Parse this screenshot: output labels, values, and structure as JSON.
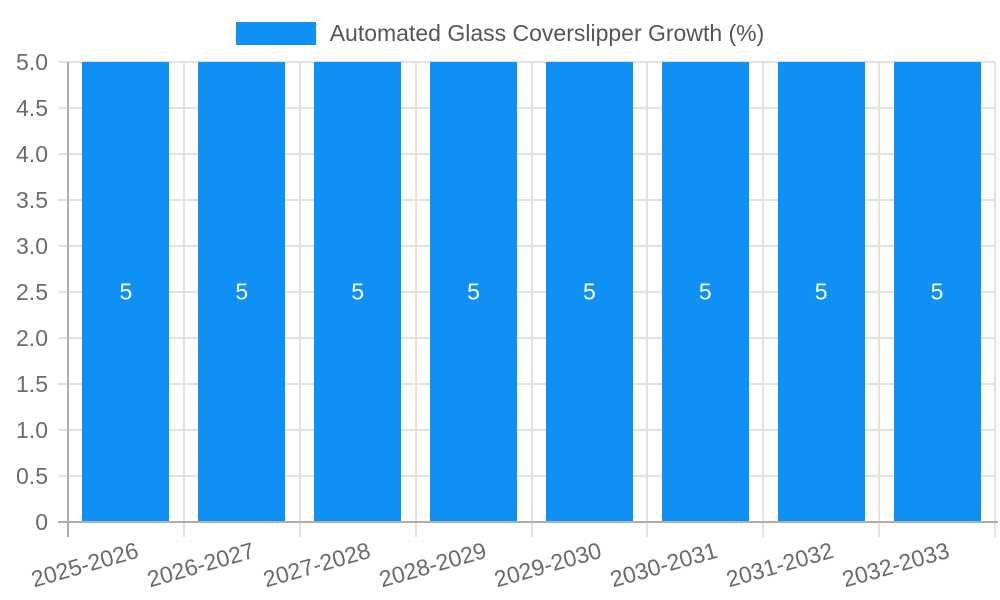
{
  "chart_data": {
    "type": "bar",
    "title": "Automated Glass Coverslipper Growth (%)",
    "series_name": "Automated Glass Coverslipper Growth (%)",
    "categories": [
      "2025-2026",
      "2026-2027",
      "2027-2028",
      "2028-2029",
      "2029-2030",
      "2030-2031",
      "2031-2032",
      "2032-2033"
    ],
    "values": [
      5,
      5,
      5,
      5,
      5,
      5,
      5,
      5
    ],
    "value_labels": [
      "5",
      "5",
      "5",
      "5",
      "5",
      "5",
      "5",
      "5"
    ],
    "xlabel": "",
    "ylabel": "",
    "ylim": [
      0,
      5
    ],
    "ytick_values": [
      0,
      0.5,
      1,
      1.5,
      2,
      2.5,
      3,
      3.5,
      4,
      4.5,
      5
    ],
    "ytick_labels": [
      "0",
      "0.5",
      "1.0",
      "1.5",
      "2.0",
      "2.5",
      "3.0",
      "3.5",
      "4.0",
      "4.5",
      "5.0"
    ],
    "grid": true,
    "legend_position": "top-center",
    "x_tick_rotation_deg": -16,
    "colors": {
      "bar": "#0e90f4",
      "grid": "#e2e2e2",
      "axis": "#aeaeae",
      "tick_label": "#6b6b6b",
      "legend_text": "#565656",
      "value_label": "#ffffff",
      "background": "#ffffff"
    }
  }
}
